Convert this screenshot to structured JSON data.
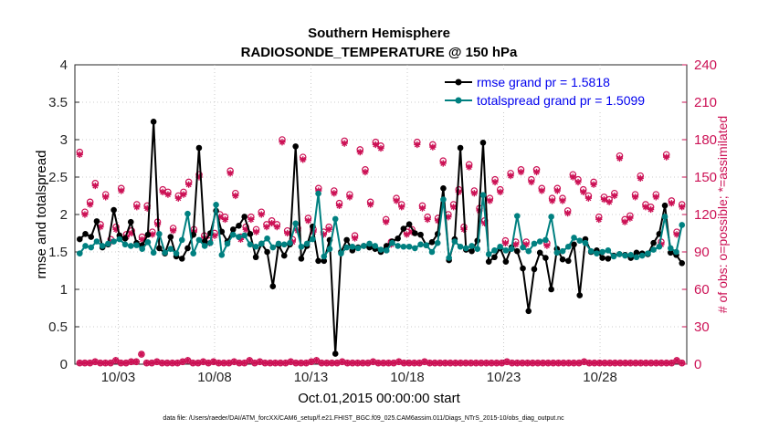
{
  "chart_data": {
    "type": "line",
    "title": "Southern Hemisphere",
    "subtitle": "RADIOSONDE_TEMPERATURE @ 150 hPa",
    "xlabel": "Oct.01,2015 00:00:00 start",
    "ylabel": "rmse and totalspread",
    "y2label": "# of obs: o=possible; *=assimilated",
    "footnote": "data file: /Users/raeder/DAI/ATM_forcXX/CAM6_setup/f.e21.FHIST_BGC.f09_025.CAM6assim.011/Diags_NTrS_2015-10/obs_diag_output.nc",
    "xlim": [
      0.75,
      32.5
    ],
    "ylim": [
      0,
      4
    ],
    "y2lim": [
      0,
      240
    ],
    "x_ticks": [
      3,
      8,
      13,
      18,
      23,
      28
    ],
    "x_tick_labels": [
      "10/03",
      "10/08",
      "10/13",
      "10/18",
      "10/23",
      "10/28"
    ],
    "y_ticks": [
      "0",
      "0.5",
      "1",
      "1.5",
      "2",
      "2.5",
      "3",
      "3.5",
      "4"
    ],
    "y2_ticks": [
      "0",
      "30",
      "60",
      "90",
      "120",
      "150",
      "180",
      "210",
      "240"
    ],
    "legend_position": "top-right",
    "colors": {
      "rmse": "#000000",
      "spread": "#008080",
      "obs": "#cc1155",
      "axis_left": "#262626"
    },
    "series": [
      {
        "name": "rmse grand pr = 1.5818",
        "key": "rmse",
        "values": [
          1.67,
          1.74,
          1.7,
          1.91,
          1.56,
          1.6,
          2.06,
          1.72,
          1.68,
          1.9,
          1.62,
          1.59,
          1.73,
          3.24,
          1.55,
          1.48,
          1.7,
          1.44,
          1.41,
          1.55,
          1.73,
          2.89,
          1.64,
          1.75,
          2.05,
          1.77,
          1.64,
          1.8,
          1.85,
          1.97,
          1.74,
          1.43,
          1.61,
          1.5,
          1.04,
          1.59,
          1.45,
          1.6,
          2.91,
          1.41,
          1.58,
          1.84,
          1.38,
          1.38,
          1.66,
          0.14,
          1.5,
          1.66,
          1.52,
          1.56,
          1.58,
          1.56,
          1.54,
          1.5,
          1.58,
          1.64,
          1.68,
          1.81,
          1.87,
          1.75,
          1.73,
          1.59,
          1.63,
          1.74,
          2.35,
          1.39,
          1.67,
          2.89,
          1.53,
          1.51,
          1.65,
          2.96,
          1.37,
          1.43,
          1.55,
          1.37,
          1.56,
          1.51,
          1.28,
          0.71,
          1.27,
          1.49,
          1.42,
          1.0,
          1.54,
          1.4,
          1.38,
          1.6,
          0.92,
          1.67,
          1.5,
          1.52,
          1.42,
          1.41,
          1.45,
          1.47,
          1.46,
          1.42,
          1.49,
          1.48,
          1.47,
          1.62,
          1.74,
          2.12,
          1.49,
          1.46,
          1.35
        ]
      },
      {
        "name": "totalspread grand pr = 1.5099",
        "key": "spread",
        "values": [
          1.48,
          1.58,
          1.56,
          1.64,
          1.58,
          1.61,
          1.64,
          1.67,
          1.6,
          1.58,
          1.59,
          1.54,
          1.63,
          1.49,
          1.74,
          1.49,
          1.54,
          1.48,
          1.66,
          2.01,
          1.48,
          1.66,
          1.58,
          1.62,
          2.13,
          1.46,
          1.61,
          1.73,
          1.7,
          1.72,
          1.6,
          1.57,
          1.61,
          1.68,
          1.56,
          1.61,
          1.6,
          1.62,
          1.88,
          1.57,
          1.61,
          1.67,
          2.28,
          1.44,
          1.54,
          1.94,
          1.48,
          1.56,
          1.57,
          1.55,
          1.58,
          1.61,
          1.58,
          1.53,
          1.52,
          1.62,
          1.58,
          1.57,
          1.57,
          1.55,
          1.6,
          1.59,
          1.5,
          1.62,
          2.2,
          1.42,
          1.64,
          1.57,
          1.55,
          1.58,
          1.54,
          2.26,
          1.47,
          1.52,
          1.57,
          1.52,
          1.54,
          1.98,
          1.56,
          1.51,
          1.61,
          1.64,
          1.66,
          1.97,
          1.49,
          1.51,
          1.57,
          1.69,
          1.65,
          1.62,
          1.51,
          1.48,
          1.5,
          1.52,
          1.44,
          1.47,
          1.45,
          1.46,
          1.43,
          1.45,
          1.48,
          1.53,
          1.57,
          1.97,
          1.55,
          1.5,
          1.86
        ]
      }
    ],
    "obs_possible": [
      170,
      122,
      130,
      145,
      112,
      136,
      100,
      110,
      141,
      104,
      107,
      128,
      102,
      127,
      106,
      114,
      140,
      138,
      109,
      135,
      138,
      146,
      108,
      152,
      103,
      99,
      105,
      120,
      118,
      155,
      137,
      102,
      110,
      118,
      108,
      122,
      112,
      115,
      112,
      180,
      107,
      100,
      109,
      166,
      117,
      108,
      141,
      106,
      110,
      139,
      129,
      179,
      136,
      103,
      172,
      156,
      130,
      178,
      175,
      116,
      98,
      133,
      128,
      106,
      108,
      178,
      127,
      118,
      176,
      117,
      163,
      120,
      128,
      140,
      110,
      160,
      139,
      125,
      115,
      133,
      148,
      140,
      99,
      153,
      98,
      156,
      98,
      148,
      156,
      141,
      97,
      133,
      141,
      133,
      123,
      152,
      148,
      140,
      135,
      146,
      118,
      134,
      132,
      137,
      167,
      116,
      119,
      136,
      151,
      128,
      126,
      136,
      98,
      168,
      131,
      106,
      128
    ],
    "obs_assimilated": [
      168,
      120,
      128,
      143,
      110,
      134,
      98,
      108,
      139,
      102,
      105,
      126,
      100,
      125,
      104,
      112,
      138,
      136,
      107,
      133,
      136,
      144,
      106,
      150,
      101,
      97,
      103,
      118,
      116,
      153,
      135,
      100,
      108,
      116,
      106,
      120,
      110,
      113,
      110,
      178,
      105,
      98,
      107,
      164,
      115,
      106,
      139,
      104,
      108,
      137,
      127,
      177,
      134,
      101,
      170,
      154,
      128,
      176,
      173,
      114,
      96,
      131,
      126,
      104,
      106,
      176,
      125,
      116,
      174,
      115,
      161,
      118,
      126,
      138,
      108,
      158,
      137,
      123,
      113,
      131,
      146,
      138,
      97,
      151,
      96,
      154,
      96,
      146,
      154,
      139,
      95,
      131,
      139,
      131,
      121,
      150,
      146,
      138,
      133,
      144,
      116,
      132,
      130,
      135,
      165,
      114,
      117,
      134,
      149,
      126,
      124,
      134,
      96,
      166,
      129,
      104,
      126
    ],
    "obs_low_possible": [
      1,
      1,
      1,
      2,
      1,
      1,
      1,
      3,
      1,
      1,
      2,
      2,
      8,
      1,
      1,
      2,
      1,
      1,
      1,
      1,
      2,
      3,
      1,
      1,
      2,
      1,
      2,
      1,
      1,
      1,
      2,
      1,
      1,
      3,
      1,
      2,
      1,
      1,
      1,
      1,
      1,
      2,
      1,
      1,
      1,
      2,
      3,
      1,
      1,
      1,
      1,
      2,
      1,
      1,
      1,
      1,
      1,
      2,
      1,
      1,
      1,
      1,
      2,
      1,
      1,
      1,
      1,
      2,
      1,
      1,
      1,
      1,
      1,
      1,
      1,
      1,
      1,
      1,
      1,
      1,
      1,
      1,
      1,
      2,
      1,
      1,
      1,
      1,
      1,
      1,
      1,
      1,
      1,
      1,
      1,
      1,
      1,
      1,
      2,
      1,
      1,
      1,
      1,
      1,
      1,
      1,
      1,
      1,
      1,
      1,
      1,
      1,
      1,
      1,
      1,
      1,
      3,
      1
    ],
    "obs_low_assimilated": [
      1,
      1,
      1,
      2,
      1,
      1,
      1,
      3,
      1,
      1,
      2,
      2,
      8,
      1,
      1,
      2,
      1,
      1,
      1,
      1,
      2,
      3,
      1,
      1,
      2,
      1,
      2,
      1,
      1,
      1,
      2,
      1,
      1,
      3,
      1,
      2,
      1,
      1,
      1,
      1,
      1,
      2,
      1,
      1,
      1,
      2,
      3,
      1,
      1,
      1,
      1,
      2,
      1,
      1,
      1,
      1,
      1,
      2,
      1,
      1,
      1,
      1,
      2,
      1,
      1,
      1,
      1,
      2,
      1,
      1,
      1,
      1,
      1,
      1,
      1,
      1,
      1,
      1,
      1,
      1,
      1,
      1,
      1,
      2,
      1,
      1,
      1,
      1,
      1,
      1,
      1,
      1,
      1,
      1,
      1,
      1,
      1,
      1,
      2,
      1,
      1,
      1,
      1,
      1,
      1,
      1,
      1,
      1,
      1,
      1,
      1,
      1,
      1,
      1,
      1,
      1,
      3,
      1
    ]
  }
}
